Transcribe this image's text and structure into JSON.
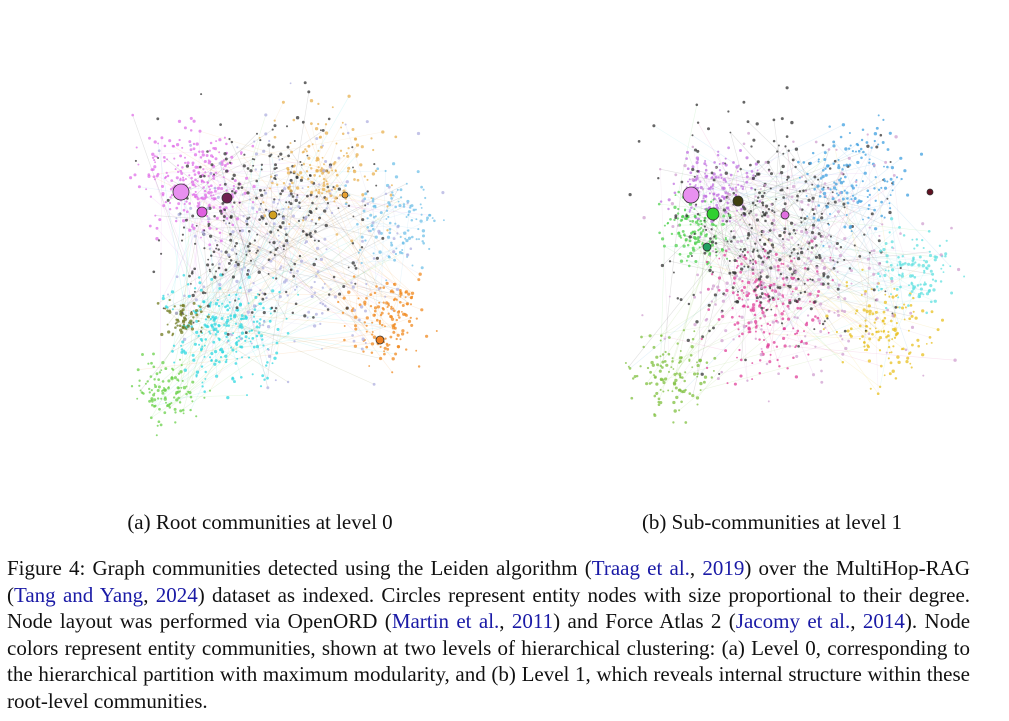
{
  "figure": {
    "subcaptions": [
      "(a) Root communities at level 0",
      "(b) Sub-communities at level 1"
    ],
    "caption": [
      "Figure 4: Graph communities detected using the Leiden algorithm (",
      {
        "cite": "Traag et al.",
        "year": "2019"
      },
      ") over the MultiHop-RAG (",
      {
        "cite": "Tang and Yang",
        "year": "2024"
      },
      ") dataset as indexed. Circles represent entity nodes with size proportional to their degree. Node layout was performed via OpenORD (",
      {
        "cite": "Martin et al.",
        "year": "2011"
      },
      ") and Force Atlas 2 (",
      {
        "cite": "Jacomy et al.",
        "year": "2014"
      },
      "). Node colors represent entity communities, shown at two levels of hierarchical clustering: (a) Level 0, corresponding to the hierarchical partition with maximum modularity, and (b) Level 1, which reveals internal structure within these root-level communities."
    ]
  }
}
